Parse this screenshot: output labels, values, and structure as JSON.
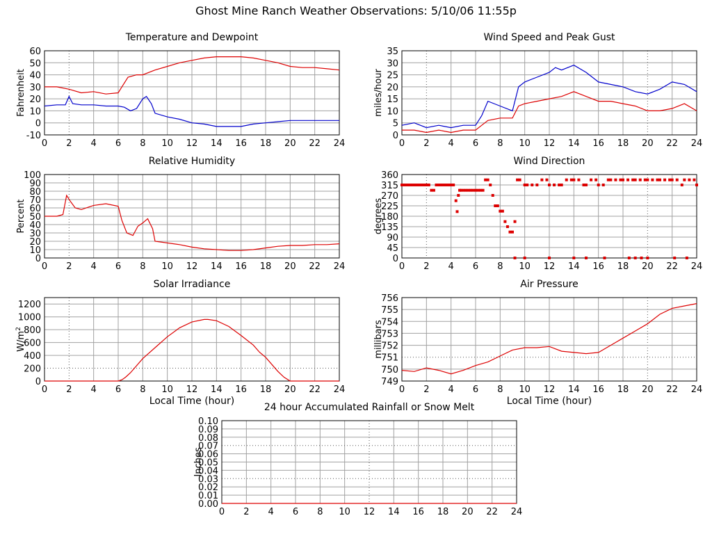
{
  "page_title": "Ghost Mine Ranch Weather Observations: 5/10/06 11:55p",
  "colors": {
    "red": "#dd0000",
    "blue": "#0000cc",
    "grid": "#a0a0a0"
  },
  "chart_data": [
    {
      "type": "line",
      "title": "Temperature and Dewpoint",
      "xlabel": "",
      "ylabel": "Fahrenheit",
      "xlim": [
        0,
        24
      ],
      "ylim": [
        -10,
        60
      ],
      "xticks": [
        0,
        2,
        4,
        6,
        8,
        10,
        12,
        14,
        16,
        18,
        20,
        22,
        24
      ],
      "yticks": [
        -10,
        0,
        10,
        20,
        30,
        40,
        50,
        60
      ],
      "grid": true,
      "series": [
        {
          "color": "red",
          "x": [
            0,
            1,
            2,
            3,
            4,
            5,
            6,
            6.3,
            6.8,
            7.5,
            8,
            9,
            10,
            11,
            12,
            13,
            14,
            15,
            16,
            17,
            18,
            19,
            20,
            21,
            22,
            23,
            24
          ],
          "y": [
            30,
            30,
            28,
            25,
            26,
            24,
            25,
            30,
            38,
            40,
            40,
            44,
            47,
            50,
            52,
            54,
            55,
            55,
            55,
            54,
            52,
            50,
            47,
            46,
            46,
            45,
            44
          ]
        },
        {
          "color": "blue",
          "x": [
            0,
            1,
            1.7,
            2,
            2.3,
            3,
            4,
            5,
            6,
            6.5,
            7,
            7.5,
            8,
            8.3,
            8.7,
            9,
            10,
            11,
            12,
            13,
            14,
            15,
            16,
            17,
            18,
            19,
            20,
            21,
            22,
            23,
            24
          ],
          "y": [
            14,
            15,
            15,
            22,
            16,
            15,
            15,
            14,
            14,
            13,
            10,
            12,
            20,
            22,
            16,
            8,
            5,
            3,
            0,
            -1,
            -3,
            -3,
            -3,
            -1,
            0,
            1,
            2,
            2,
            2,
            2,
            2
          ]
        }
      ]
    },
    {
      "type": "line",
      "title": "Wind Speed and Peak Gust",
      "xlabel": "",
      "ylabel": "miles/hour",
      "xlim": [
        0,
        24
      ],
      "ylim": [
        0,
        35
      ],
      "xticks": [
        0,
        2,
        4,
        6,
        8,
        10,
        12,
        14,
        16,
        18,
        20,
        22,
        24
      ],
      "yticks": [
        0,
        5,
        10,
        15,
        20,
        25,
        30,
        35
      ],
      "grid": true,
      "series": [
        {
          "color": "blue",
          "x": [
            0,
            1,
            2,
            3,
            4,
            5,
            6,
            6.5,
            7,
            8,
            9,
            9.5,
            10,
            11,
            12,
            12.5,
            13,
            14,
            15,
            16,
            17,
            18,
            19,
            20,
            21,
            22,
            23,
            24
          ],
          "y": [
            4,
            5,
            3,
            4,
            3,
            4,
            4,
            8,
            14,
            12,
            10,
            20,
            22,
            24,
            26,
            28,
            27,
            29,
            26,
            22,
            21,
            20,
            18,
            17,
            19,
            22,
            21,
            18
          ]
        },
        {
          "color": "red",
          "x": [
            0,
            1,
            2,
            3,
            4,
            5,
            6,
            6.5,
            7,
            8,
            9,
            9.5,
            10,
            11,
            12,
            13,
            14,
            15,
            16,
            17,
            18,
            19,
            20,
            21,
            22,
            23,
            24
          ],
          "y": [
            2,
            2,
            1,
            2,
            1,
            2,
            2,
            4,
            6,
            7,
            7,
            12,
            13,
            14,
            15,
            16,
            18,
            16,
            14,
            14,
            13,
            12,
            10,
            10,
            11,
            13,
            10
          ]
        }
      ]
    },
    {
      "type": "line",
      "title": "Relative Humidity",
      "xlabel": "",
      "ylabel": "Percent",
      "xlim": [
        0,
        24
      ],
      "ylim": [
        0,
        100
      ],
      "xticks": [
        0,
        2,
        4,
        6,
        8,
        10,
        12,
        14,
        16,
        18,
        20,
        22,
        24
      ],
      "yticks": [
        0,
        10,
        20,
        30,
        40,
        50,
        60,
        70,
        80,
        90,
        100
      ],
      "grid": true,
      "series": [
        {
          "color": "red",
          "x": [
            0,
            1,
            1.5,
            1.8,
            2.1,
            2.5,
            3,
            4,
            5,
            6,
            6.3,
            6.7,
            7.2,
            7.6,
            8,
            8.4,
            8.8,
            9,
            10,
            11,
            12,
            13,
            14,
            15,
            16,
            17,
            18,
            19,
            20,
            21,
            22,
            23,
            24
          ],
          "y": [
            50,
            50,
            52,
            75,
            68,
            60,
            58,
            63,
            65,
            62,
            45,
            30,
            27,
            38,
            42,
            47,
            35,
            20,
            18,
            16,
            13,
            11,
            10,
            9,
            9,
            10,
            12,
            14,
            15,
            15,
            16,
            16,
            17
          ]
        }
      ]
    },
    {
      "type": "scatter",
      "title": "Wind Direction",
      "xlabel": "",
      "ylabel": "degrees",
      "xlim": [
        0,
        24
      ],
      "ylim": [
        0,
        360
      ],
      "xticks": [
        0,
        2,
        4,
        6,
        8,
        10,
        12,
        14,
        16,
        18,
        20,
        22,
        24
      ],
      "yticks": [
        0,
        45,
        90,
        135,
        180,
        225,
        270,
        315,
        360
      ],
      "grid": true,
      "series": [
        {
          "color": "red",
          "x": [
            0,
            0.2,
            0.4,
            0.6,
            0.8,
            1,
            1.2,
            1.4,
            1.6,
            1.8,
            2,
            2.2,
            2.4,
            2.6,
            2.8,
            3,
            3.2,
            3.4,
            3.6,
            3.8,
            4,
            4.2,
            4.4,
            4.5,
            4.6,
            4.7,
            4.8,
            5,
            5.2,
            5.4,
            5.6,
            5.8,
            6,
            6.2,
            6.4,
            6.6,
            6.8,
            7,
            7.2,
            7.4,
            7.6,
            7.8,
            8,
            8.2,
            8.4,
            8.6,
            8.8,
            9,
            9.2,
            9.4,
            9.6,
            10,
            10.2,
            10.6,
            11,
            11.4,
            11.8,
            12,
            12.4,
            12.8,
            13,
            13.4,
            13.8,
            14,
            14.4,
            14.8,
            15,
            15.4,
            15.8,
            16,
            16.4,
            16.8,
            17,
            17.4,
            17.8,
            18,
            18.4,
            18.8,
            19,
            19.4,
            19.8,
            20,
            20.4,
            20.8,
            21,
            21.4,
            21.8,
            22,
            22.4,
            22.8,
            23,
            23.4,
            23.8,
            24,
            9.2,
            10,
            12,
            14,
            15,
            16.5,
            18.5,
            19,
            19.5,
            20,
            22.2,
            23.2
          ],
          "y": [
            315,
            315,
            315,
            315,
            315,
            315,
            315,
            315,
            315,
            315,
            315,
            315,
            292,
            292,
            315,
            315,
            315,
            315,
            315,
            315,
            315,
            315,
            247,
            200,
            270,
            292,
            292,
            292,
            292,
            292,
            292,
            292,
            292,
            292,
            292,
            292,
            337,
            337,
            315,
            270,
            225,
            225,
            202,
            202,
            157,
            135,
            112,
            112,
            157,
            337,
            337,
            315,
            315,
            315,
            315,
            337,
            337,
            315,
            315,
            315,
            315,
            337,
            337,
            337,
            337,
            315,
            315,
            337,
            337,
            315,
            315,
            337,
            337,
            337,
            337,
            337,
            337,
            337,
            337,
            337,
            337,
            337,
            337,
            337,
            337,
            337,
            337,
            337,
            337,
            315,
            337,
            337,
            337,
            315,
            0,
            0,
            0,
            0,
            0,
            0,
            0,
            0,
            0,
            0,
            0,
            0
          ]
        }
      ]
    },
    {
      "type": "line",
      "title": "Solar Irradiance",
      "xlabel": "Local Time (hour)",
      "ylabel": "W/m",
      "ylabel_sup": "2",
      "xlim": [
        0,
        24
      ],
      "ylim": [
        0,
        1300
      ],
      "xticks": [
        0,
        2,
        4,
        6,
        8,
        10,
        12,
        14,
        16,
        18,
        20,
        22,
        24
      ],
      "yticks": [
        0,
        200,
        400,
        600,
        800,
        1000,
        1200
      ],
      "grid": true,
      "series": [
        {
          "color": "red",
          "x": [
            0,
            2,
            4,
            6,
            6.3,
            6.6,
            7,
            8,
            9,
            10,
            11,
            12,
            13,
            13.3,
            14,
            15,
            16,
            17,
            17.5,
            18,
            19,
            19.5,
            20,
            22,
            24
          ],
          "y": [
            0,
            0,
            0,
            0,
            20,
            60,
            130,
            350,
            520,
            690,
            830,
            920,
            960,
            960,
            940,
            850,
            710,
            560,
            450,
            370,
            150,
            60,
            0,
            0,
            0
          ]
        }
      ]
    },
    {
      "type": "line",
      "title": "Air Pressure",
      "xlabel": "Local Time (hour)",
      "ylabel": "millibars",
      "xlim": [
        0,
        24
      ],
      "ylim": [
        749,
        756
      ],
      "xticks": [
        0,
        2,
        4,
        6,
        8,
        10,
        12,
        14,
        16,
        18,
        20,
        22,
        24
      ],
      "yticks": [
        749,
        750,
        751,
        752,
        753,
        754,
        755,
        756
      ],
      "grid": true,
      "series": [
        {
          "color": "red",
          "x": [
            0,
            1,
            2,
            3,
            4,
            5,
            6,
            7,
            8,
            9,
            10,
            11,
            12,
            13,
            14,
            15,
            16,
            17,
            18,
            19,
            20,
            21,
            22,
            23,
            24
          ],
          "y": [
            749.9,
            749.8,
            750.1,
            749.9,
            749.6,
            749.9,
            750.3,
            750.6,
            751.1,
            751.6,
            751.8,
            751.8,
            751.9,
            751.5,
            751.4,
            751.3,
            751.4,
            752.0,
            752.6,
            753.2,
            753.8,
            754.6,
            755.1,
            755.3,
            755.5
          ]
        }
      ]
    },
    {
      "type": "line",
      "title": "24 hour Accumulated Rainfall or Snow Melt",
      "xlabel": "",
      "ylabel": "Inches",
      "xlim": [
        0,
        24
      ],
      "ylim": [
        0,
        0.1
      ],
      "xticks": [
        0,
        2,
        4,
        6,
        8,
        10,
        12,
        14,
        16,
        18,
        20,
        22,
        24
      ],
      "yticks": [
        "0.00",
        "0.01",
        "0.02",
        "0.03",
        "0.04",
        "0.05",
        "0.06",
        "0.07",
        "0.08",
        "0.09",
        "0.10"
      ],
      "grid": true,
      "series": [
        {
          "color": "red",
          "x": [
            0,
            24
          ],
          "y": [
            0,
            0
          ]
        }
      ]
    }
  ]
}
